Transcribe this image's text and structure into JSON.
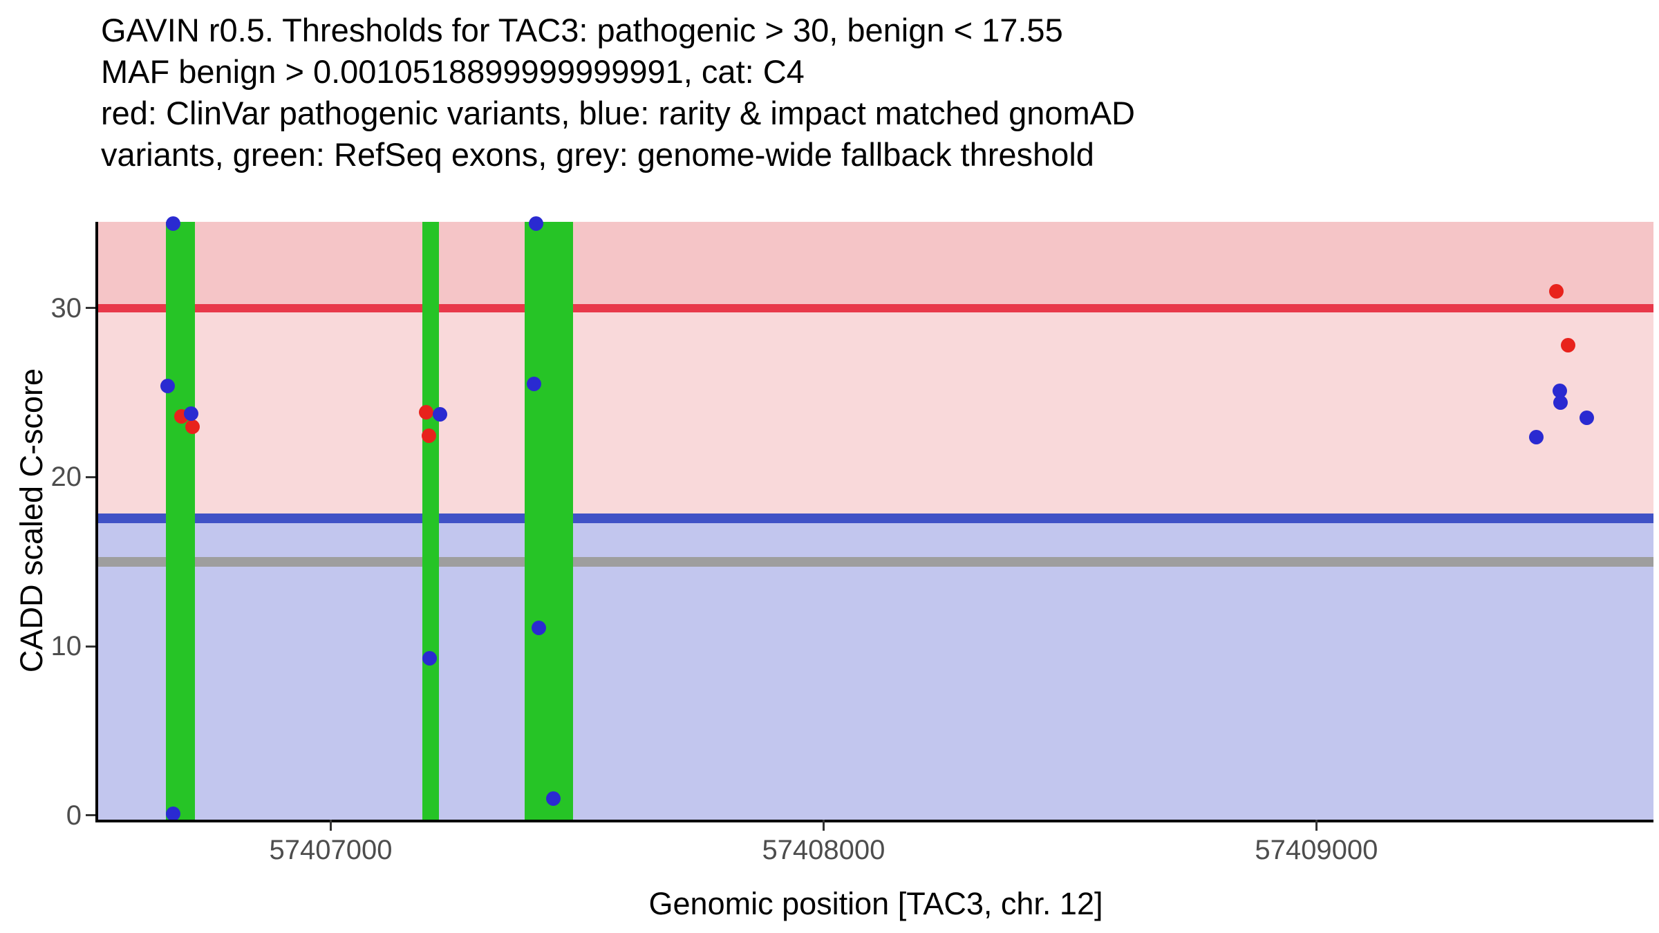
{
  "title_lines": [
    "GAVIN r0.5. Thresholds for TAC3: pathogenic > 30, benign < 17.55",
    "MAF benign > 0.0010518899999999991, cat: C4",
    "red: ClinVar pathogenic variants, blue: rarity & impact matched gnomAD",
    "variants, green: RefSeq exons, grey: genome-wide fallback threshold"
  ],
  "chart_data": {
    "type": "scatter",
    "title": "GAVIN r0.5. Thresholds for TAC3",
    "xlabel": "Genomic position [TAC3, chr. 12]",
    "ylabel": "CADD scaled C-score",
    "xlim": [
      57406528,
      57409684
    ],
    "ylim": [
      -0.25,
      35.1
    ],
    "x_ticks": [
      57407000,
      57408000,
      57409000
    ],
    "y_ticks": [
      0,
      10,
      20,
      30
    ],
    "grid": false,
    "legend": "none",
    "thresholds": {
      "pathogenic": 30,
      "benign": 17.55,
      "genome_wide_fallback": 15
    },
    "exons": [
      [
        57406665,
        57406725
      ],
      [
        57407186,
        57407219
      ],
      [
        57407394,
        57407491
      ]
    ],
    "series": [
      {
        "name": "ClinVar pathogenic variants",
        "color_key": "point_red",
        "points": [
          [
            57406697,
            23.6
          ],
          [
            57406719,
            23.0
          ],
          [
            57407193,
            23.85
          ],
          [
            57407199,
            22.45
          ],
          [
            57409487,
            31.0
          ],
          [
            57409511,
            27.8
          ]
        ]
      },
      {
        "name": "rarity & impact matched gnomAD variants",
        "color_key": "point_blue",
        "points": [
          [
            57406680,
            35.0
          ],
          [
            57406669,
            25.4
          ],
          [
            57406716,
            23.75
          ],
          [
            57406680,
            0.1
          ],
          [
            57407221,
            23.7
          ],
          [
            57407201,
            9.3
          ],
          [
            57407416,
            35.0
          ],
          [
            57407413,
            25.5
          ],
          [
            57407422,
            11.1
          ],
          [
            57407452,
            1.0
          ],
          [
            57409446,
            22.35
          ],
          [
            57409494,
            25.1
          ],
          [
            57409496,
            24.4
          ],
          [
            57409548,
            23.5
          ]
        ]
      }
    ],
    "colors": {
      "zone_pathogenic": "#f5c5c7",
      "zone_intermediate": "#f9d9da",
      "zone_benign": "#c2c6ee",
      "line_pathogenic": "#e8394a",
      "line_benign": "#4052c6",
      "line_fallback": "#9e9e9e",
      "exon": "#26c426",
      "point_red": "#e8221c",
      "point_blue": "#2a2ad1",
      "axis": "#000000",
      "tick": "#333333",
      "tick_label": "#4d4d4d"
    }
  }
}
